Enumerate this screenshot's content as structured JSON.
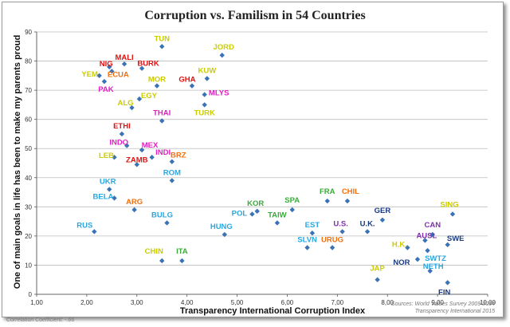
{
  "chart_data": {
    "type": "scatter",
    "title": "Corruption vs. Familism in 54 Countries",
    "xlabel": "Transparency International Corruption Index",
    "ylabel": "One of main goals in life has been to make my parents proud",
    "xlim": [
      1,
      10
    ],
    "ylim": [
      0,
      90
    ],
    "xticks": [
      "1,00",
      "2,00",
      "3,00",
      "4,00",
      "5,00",
      "6,00",
      "7,00",
      "8,00",
      "9,00",
      "10,00"
    ],
    "yticks": [
      "0",
      "10",
      "20",
      "30",
      "40",
      "50",
      "60",
      "70",
      "80",
      "90"
    ],
    "grid": "horizontal",
    "marker_color": "#3a73b5",
    "points": [
      {
        "label": "TUN",
        "x": 3.5,
        "y": 85,
        "color": "#cccc00"
      },
      {
        "label": "JORD",
        "x": 4.7,
        "y": 82,
        "color": "#cccc00"
      },
      {
        "label": "NIG",
        "x": 2.45,
        "y": 78,
        "color": "#e01010"
      },
      {
        "label": "MALI",
        "x": 2.75,
        "y": 79,
        "color": "#e01010"
      },
      {
        "label": "BURK",
        "x": 3.1,
        "y": 77.5,
        "color": "#e01010"
      },
      {
        "label": "YEM",
        "x": 2.25,
        "y": 75,
        "color": "#cccc00"
      },
      {
        "label": "ECUA",
        "x": 2.5,
        "y": 76.5,
        "color": "#f07010"
      },
      {
        "label": "PAK",
        "x": 2.35,
        "y": 73,
        "color": "#e020c0"
      },
      {
        "label": "KUW",
        "x": 4.4,
        "y": 74,
        "color": "#cccc00"
      },
      {
        "label": "MOR",
        "x": 3.4,
        "y": 71.5,
        "color": "#cccc00"
      },
      {
        "label": "GHA",
        "x": 4.1,
        "y": 71.5,
        "color": "#e01010"
      },
      {
        "label": "MLYS",
        "x": 4.35,
        "y": 68.5,
        "color": "#e020c0"
      },
      {
        "label": "EGY",
        "x": 3.05,
        "y": 67,
        "color": "#cccc00"
      },
      {
        "label": "ALG",
        "x": 2.9,
        "y": 64,
        "color": "#cccc00"
      },
      {
        "label": "TURK",
        "x": 4.35,
        "y": 65,
        "color": "#cccc00"
      },
      {
        "label": "THAI",
        "x": 3.5,
        "y": 59.5,
        "color": "#e020c0"
      },
      {
        "label": "ETHI",
        "x": 2.7,
        "y": 55,
        "color": "#e01010"
      },
      {
        "label": "INDO",
        "x": 2.8,
        "y": 51,
        "color": "#e020c0"
      },
      {
        "label": "MEX",
        "x": 3.1,
        "y": 49.5,
        "color": "#e020c0"
      },
      {
        "label": "LEB",
        "x": 2.55,
        "y": 47,
        "color": "#cccc00"
      },
      {
        "label": "INDI",
        "x": 3.3,
        "y": 47,
        "color": "#e020c0"
      },
      {
        "label": "ZAMB",
        "x": 3.0,
        "y": 44.5,
        "color": "#e01010"
      },
      {
        "label": "BRZ",
        "x": 3.7,
        "y": 45.5,
        "color": "#f07010"
      },
      {
        "label": "ROM",
        "x": 3.7,
        "y": 39,
        "color": "#29a8e0"
      },
      {
        "label": "UKR",
        "x": 2.45,
        "y": 36,
        "color": "#29a8e0"
      },
      {
        "label": "BELA",
        "x": 2.55,
        "y": 33,
        "color": "#29a8e0"
      },
      {
        "label": "ARG",
        "x": 2.95,
        "y": 29,
        "color": "#f07010"
      },
      {
        "label": "BULG",
        "x": 3.6,
        "y": 24.5,
        "color": "#29a8e0"
      },
      {
        "label": "RUS",
        "x": 2.15,
        "y": 21.5,
        "color": "#29a8e0"
      },
      {
        "label": "HUNG",
        "x": 4.75,
        "y": 20.5,
        "color": "#29a8e0"
      },
      {
        "label": "KOR",
        "x": 5.4,
        "y": 28.5,
        "color": "#3aaa3a"
      },
      {
        "label": "POL",
        "x": 5.3,
        "y": 27.5,
        "color": "#29a8e0"
      },
      {
        "label": "SPA",
        "x": 6.1,
        "y": 29,
        "color": "#3aaa3a"
      },
      {
        "label": "TAIW",
        "x": 5.8,
        "y": 24.5,
        "color": "#3aaa3a"
      },
      {
        "label": "FRA",
        "x": 6.8,
        "y": 32,
        "color": "#3aaa3a"
      },
      {
        "label": "CHIL",
        "x": 7.2,
        "y": 32,
        "color": "#f07010"
      },
      {
        "label": "EST",
        "x": 6.5,
        "y": 21,
        "color": "#29a8e0"
      },
      {
        "label": "U.S.",
        "x": 7.1,
        "y": 21.5,
        "color": "#8030b0"
      },
      {
        "label": "U.K.",
        "x": 7.6,
        "y": 21.5,
        "color": "#1a3a80"
      },
      {
        "label": "GER",
        "x": 7.9,
        "y": 25.5,
        "color": "#1a3a80"
      },
      {
        "label": "SING",
        "x": 9.3,
        "y": 27.5,
        "color": "#cccc00"
      },
      {
        "label": "SLVN",
        "x": 6.4,
        "y": 16,
        "color": "#29a8e0"
      },
      {
        "label": "URUG",
        "x": 6.9,
        "y": 16,
        "color": "#f07010"
      },
      {
        "label": "CAN",
        "x": 8.9,
        "y": 20.5,
        "color": "#8030b0"
      },
      {
        "label": "AUSL",
        "x": 8.75,
        "y": 18.5,
        "color": "#8030b0"
      },
      {
        "label": "H.K.",
        "x": 8.4,
        "y": 16,
        "color": "#cccc00"
      },
      {
        "label": "SWE",
        "x": 9.2,
        "y": 17,
        "color": "#1a3a80"
      },
      {
        "label": "SWTZ",
        "x": 8.8,
        "y": 15,
        "color": "#29a8e0"
      },
      {
        "label": "NOR",
        "x": 8.6,
        "y": 12,
        "color": "#1a3a80"
      },
      {
        "label": "NETH",
        "x": 8.85,
        "y": 8,
        "color": "#29a8e0"
      },
      {
        "label": "JAP",
        "x": 7.8,
        "y": 5,
        "color": "#cccc00"
      },
      {
        "label": "FIN",
        "x": 9.2,
        "y": 4,
        "color": "#1a3a80"
      },
      {
        "label": "CHIN",
        "x": 3.5,
        "y": 11.5,
        "color": "#cccc00"
      },
      {
        "label": "ITA",
        "x": 3.9,
        "y": 11.5,
        "color": "#3aaa3a"
      }
    ],
    "annotations": [
      "Correlation Coefficient: -.66",
      "Sources: World Values Survey 2009-2014",
      "Transparency International 2015"
    ]
  }
}
